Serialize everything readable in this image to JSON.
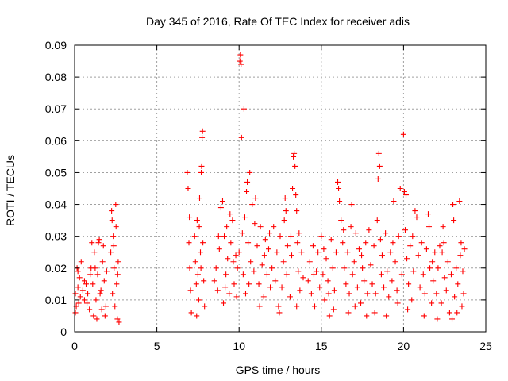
{
  "chart_data": {
    "type": "scatter",
    "title": "Day 345 of 2016, Rate Of TEC Index for receiver adis",
    "xlabel": "GPS time / hours",
    "ylabel": "ROTI / TECUs",
    "xlim": [
      0,
      25
    ],
    "ylim": [
      0,
      0.09
    ],
    "x_ticks": [
      0,
      5,
      10,
      15,
      20,
      25
    ],
    "x_tick_labels": [
      "0",
      "5",
      "10",
      "15",
      "20",
      "25"
    ],
    "y_ticks": [
      0,
      0.01,
      0.02,
      0.03,
      0.04,
      0.05,
      0.06,
      0.07,
      0.08,
      0.09
    ],
    "y_tick_labels": [
      "0",
      "0.01",
      "0.02",
      "0.03",
      "0.04",
      "0.05",
      "0.06",
      "0.07",
      "0.08",
      "0.09"
    ],
    "grid": true,
    "marker": "plus",
    "color": "#ff0000",
    "series": [
      {
        "name": "ROTI",
        "points": [
          [
            0.05,
            0.012
          ],
          [
            0.1,
            0.008
          ],
          [
            0.15,
            0.02
          ],
          [
            0.2,
            0.014
          ],
          [
            0.25,
            0.009
          ],
          [
            0.3,
            0.017
          ],
          [
            0.35,
            0.011
          ],
          [
            0.4,
            0.022
          ],
          [
            0.05,
            0.006
          ],
          [
            0.2,
            0.019
          ],
          [
            0.5,
            0.013
          ],
          [
            0.6,
            0.01
          ],
          [
            0.7,
            0.015
          ],
          [
            0.8,
            0.012
          ],
          [
            0.9,
            0.007
          ],
          [
            0.95,
            0.018
          ],
          [
            0.6,
            0.016
          ],
          [
            0.75,
            0.009
          ],
          [
            1.0,
            0.02
          ],
          [
            1.05,
            0.028
          ],
          [
            1.1,
            0.015
          ],
          [
            1.2,
            0.025
          ],
          [
            1.3,
            0.01
          ],
          [
            1.4,
            0.018
          ],
          [
            1.5,
            0.029
          ],
          [
            1.6,
            0.013
          ],
          [
            1.7,
            0.022
          ],
          [
            1.8,
            0.016
          ],
          [
            1.9,
            0.008
          ],
          [
            1.15,
            0.005
          ],
          [
            1.35,
            0.004
          ],
          [
            1.55,
            0.012
          ],
          [
            1.75,
            0.027
          ],
          [
            1.85,
            0.005
          ],
          [
            1.25,
            0.02
          ],
          [
            1.45,
            0.028
          ],
          [
            1.65,
            0.007
          ],
          [
            1.95,
            0.019
          ],
          [
            2.2,
            0.025
          ],
          [
            2.25,
            0.038
          ],
          [
            2.3,
            0.012
          ],
          [
            2.35,
            0.03
          ],
          [
            2.4,
            0.02
          ],
          [
            2.45,
            0.008
          ],
          [
            2.5,
            0.04
          ],
          [
            2.55,
            0.015
          ],
          [
            2.6,
            0.004
          ],
          [
            2.65,
            0.022
          ],
          [
            2.7,
            0.003
          ],
          [
            2.28,
            0.035
          ],
          [
            2.38,
            0.027
          ],
          [
            2.52,
            0.033
          ],
          [
            2.62,
            0.018
          ],
          [
            6.85,
            0.05
          ],
          [
            6.9,
            0.045
          ],
          [
            6.95,
            0.028
          ],
          [
            7.0,
            0.02
          ],
          [
            7.05,
            0.013
          ],
          [
            7.1,
            0.006
          ],
          [
            6.98,
            0.036
          ],
          [
            7.3,
            0.03
          ],
          [
            7.35,
            0.022
          ],
          [
            7.4,
            0.015
          ],
          [
            7.45,
            0.035
          ],
          [
            7.5,
            0.018
          ],
          [
            7.55,
            0.01
          ],
          [
            7.6,
            0.042
          ],
          [
            7.65,
            0.025
          ],
          [
            7.7,
            0.05
          ],
          [
            7.72,
            0.052
          ],
          [
            7.75,
            0.061
          ],
          [
            7.78,
            0.063
          ],
          [
            7.8,
            0.028
          ],
          [
            7.85,
            0.016
          ],
          [
            7.9,
            0.008
          ],
          [
            7.42,
            0.005
          ],
          [
            7.58,
            0.033
          ],
          [
            7.68,
            0.02
          ],
          [
            8.5,
            0.016
          ],
          [
            8.6,
            0.02
          ],
          [
            8.7,
            0.013
          ],
          [
            8.8,
            0.026
          ],
          [
            8.9,
            0.039
          ],
          [
            9.0,
            0.041
          ],
          [
            9.1,
            0.03
          ],
          [
            9.2,
            0.018
          ],
          [
            9.3,
            0.023
          ],
          [
            9.4,
            0.012
          ],
          [
            9.5,
            0.028
          ],
          [
            9.6,
            0.035
          ],
          [
            9.7,
            0.015
          ],
          [
            9.8,
            0.024
          ],
          [
            9.9,
            0.02
          ],
          [
            9.05,
            0.009
          ],
          [
            9.25,
            0.033
          ],
          [
            9.45,
            0.037
          ],
          [
            9.65,
            0.022
          ],
          [
            9.85,
            0.011
          ],
          [
            8.75,
            0.03
          ],
          [
            9.15,
            0.014
          ],
          [
            10.0,
            0.025
          ],
          [
            10.05,
            0.085
          ],
          [
            10.08,
            0.087
          ],
          [
            10.12,
            0.084
          ],
          [
            10.15,
            0.061
          ],
          [
            10.2,
            0.031
          ],
          [
            10.25,
            0.018
          ],
          [
            10.3,
            0.07
          ],
          [
            10.35,
            0.036
          ],
          [
            10.4,
            0.012
          ],
          [
            10.45,
            0.044
          ],
          [
            10.5,
            0.047
          ],
          [
            10.55,
            0.028
          ],
          [
            10.6,
            0.015
          ],
          [
            10.65,
            0.05
          ],
          [
            10.7,
            0.022
          ],
          [
            10.8,
            0.04
          ],
          [
            10.9,
            0.019
          ],
          [
            11.0,
            0.042
          ],
          [
            11.1,
            0.027
          ],
          [
            11.2,
            0.015
          ],
          [
            11.3,
            0.033
          ],
          [
            11.4,
            0.021
          ],
          [
            11.5,
            0.011
          ],
          [
            11.6,
            0.029
          ],
          [
            11.7,
            0.018
          ],
          [
            11.8,
            0.026
          ],
          [
            11.9,
            0.014
          ],
          [
            10.95,
            0.034
          ],
          [
            11.25,
            0.008
          ],
          [
            11.55,
            0.024
          ],
          [
            11.85,
            0.031
          ],
          [
            12.0,
            0.02
          ],
          [
            12.1,
            0.033
          ],
          [
            12.2,
            0.016
          ],
          [
            12.3,
            0.025
          ],
          [
            12.4,
            0.008
          ],
          [
            12.5,
            0.03
          ],
          [
            12.6,
            0.014
          ],
          [
            12.7,
            0.022
          ],
          [
            12.8,
            0.042
          ],
          [
            12.85,
            0.038
          ],
          [
            12.9,
            0.018
          ],
          [
            12.95,
            0.027
          ],
          [
            12.45,
            0.006
          ],
          [
            12.75,
            0.035
          ],
          [
            13.1,
            0.011
          ],
          [
            13.2,
            0.024
          ],
          [
            13.25,
            0.045
          ],
          [
            13.3,
            0.055
          ],
          [
            13.35,
            0.056
          ],
          [
            13.4,
            0.052
          ],
          [
            13.45,
            0.043
          ],
          [
            13.5,
            0.038
          ],
          [
            13.55,
            0.028
          ],
          [
            13.6,
            0.019
          ],
          [
            13.65,
            0.031
          ],
          [
            13.7,
            0.013
          ],
          [
            13.8,
            0.025
          ],
          [
            13.9,
            0.017
          ],
          [
            13.15,
            0.03
          ],
          [
            13.5,
            0.008
          ],
          [
            14.2,
            0.016
          ],
          [
            14.3,
            0.022
          ],
          [
            14.4,
            0.012
          ],
          [
            14.5,
            0.027
          ],
          [
            14.6,
            0.008
          ],
          [
            14.7,
            0.019
          ],
          [
            14.8,
            0.025
          ],
          [
            14.9,
            0.014
          ],
          [
            15.0,
            0.03
          ],
          [
            15.1,
            0.018
          ],
          [
            15.2,
            0.01
          ],
          [
            15.3,
            0.023
          ],
          [
            15.4,
            0.016
          ],
          [
            15.5,
            0.005
          ],
          [
            15.6,
            0.029
          ],
          [
            15.7,
            0.02
          ],
          [
            15.8,
            0.013
          ],
          [
            15.9,
            0.025
          ],
          [
            14.55,
            0.018
          ],
          [
            15.15,
            0.026
          ],
          [
            15.45,
            0.012
          ],
          [
            15.75,
            0.007
          ],
          [
            16.0,
            0.047
          ],
          [
            16.05,
            0.045
          ],
          [
            16.1,
            0.041
          ],
          [
            16.2,
            0.035
          ],
          [
            16.3,
            0.028
          ],
          [
            16.4,
            0.02
          ],
          [
            16.5,
            0.015
          ],
          [
            16.6,
            0.025
          ],
          [
            16.7,
            0.012
          ],
          [
            16.8,
            0.033
          ],
          [
            16.85,
            0.04
          ],
          [
            16.9,
            0.018
          ],
          [
            17.0,
            0.022
          ],
          [
            17.1,
            0.031
          ],
          [
            17.2,
            0.014
          ],
          [
            17.3,
            0.026
          ],
          [
            17.4,
            0.009
          ],
          [
            17.5,
            0.02
          ],
          [
            17.6,
            0.016
          ],
          [
            17.7,
            0.028
          ],
          [
            17.8,
            0.012
          ],
          [
            17.9,
            0.032
          ],
          [
            16.35,
            0.032
          ],
          [
            16.65,
            0.006
          ],
          [
            17.05,
            0.008
          ],
          [
            17.45,
            0.024
          ],
          [
            17.75,
            0.005
          ],
          [
            18.0,
            0.021
          ],
          [
            18.1,
            0.015
          ],
          [
            18.2,
            0.027
          ],
          [
            18.3,
            0.012
          ],
          [
            18.4,
            0.035
          ],
          [
            18.45,
            0.048
          ],
          [
            18.5,
            0.056
          ],
          [
            18.55,
            0.052
          ],
          [
            18.6,
            0.029
          ],
          [
            18.65,
            0.018
          ],
          [
            18.7,
            0.024
          ],
          [
            18.8,
            0.014
          ],
          [
            18.9,
            0.031
          ],
          [
            19.0,
            0.019
          ],
          [
            19.1,
            0.011
          ],
          [
            19.2,
            0.025
          ],
          [
            19.3,
            0.016
          ],
          [
            19.4,
            0.041
          ],
          [
            19.5,
            0.022
          ],
          [
            19.6,
            0.013
          ],
          [
            19.7,
            0.03
          ],
          [
            19.8,
            0.045
          ],
          [
            19.9,
            0.018
          ],
          [
            18.25,
            0.006
          ],
          [
            18.95,
            0.005
          ],
          [
            19.35,
            0.028
          ],
          [
            19.65,
            0.009
          ],
          [
            20.0,
            0.062
          ],
          [
            20.05,
            0.044
          ],
          [
            20.1,
            0.032
          ],
          [
            20.15,
            0.043
          ],
          [
            20.2,
            0.023
          ],
          [
            20.3,
            0.015
          ],
          [
            20.4,
            0.027
          ],
          [
            20.5,
            0.01
          ],
          [
            20.6,
            0.019
          ],
          [
            20.7,
            0.038
          ],
          [
            20.8,
            0.036
          ],
          [
            20.9,
            0.024
          ],
          [
            21.0,
            0.014
          ],
          [
            21.1,
            0.028
          ],
          [
            21.2,
            0.018
          ],
          [
            21.3,
            0.012
          ],
          [
            21.4,
            0.026
          ],
          [
            21.5,
            0.037
          ],
          [
            21.55,
            0.033
          ],
          [
            21.6,
            0.02
          ],
          [
            21.7,
            0.009
          ],
          [
            21.8,
            0.016
          ],
          [
            21.9,
            0.025
          ],
          [
            20.25,
            0.007
          ],
          [
            20.55,
            0.03
          ],
          [
            21.25,
            0.005
          ],
          [
            21.75,
            0.022
          ],
          [
            22.0,
            0.012
          ],
          [
            22.1,
            0.02
          ],
          [
            22.2,
            0.027
          ],
          [
            22.3,
            0.009
          ],
          [
            22.4,
            0.033
          ],
          [
            22.45,
            0.028
          ],
          [
            22.5,
            0.017
          ],
          [
            22.6,
            0.013
          ],
          [
            22.7,
            0.022
          ],
          [
            22.8,
            0.006
          ],
          [
            22.9,
            0.018
          ],
          [
            23.0,
            0.04
          ],
          [
            23.05,
            0.035
          ],
          [
            23.1,
            0.011
          ],
          [
            23.2,
            0.02
          ],
          [
            23.3,
            0.015
          ],
          [
            23.4,
            0.041
          ],
          [
            23.45,
            0.024
          ],
          [
            23.5,
            0.028
          ],
          [
            23.55,
            0.008
          ],
          [
            23.6,
            0.019
          ],
          [
            23.65,
            0.012
          ],
          [
            23.7,
            0.026
          ],
          [
            22.05,
            0.004
          ],
          [
            22.35,
            0.025
          ],
          [
            22.95,
            0.004
          ],
          [
            23.25,
            0.006
          ]
        ]
      }
    ]
  }
}
